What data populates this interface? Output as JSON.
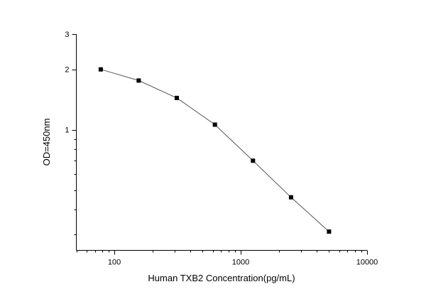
{
  "chart_data": {
    "type": "scatter",
    "x_scale": "log",
    "y_scale": "log",
    "xlabel": "Human TXB2 Concentration(pg/mL)",
    "ylabel": "OD=450nm",
    "xlim": [
      50,
      10000
    ],
    "ylim": [
      0.25,
      3
    ],
    "x_ticks": [
      {
        "value": 100,
        "label": "100"
      },
      {
        "value": 1000,
        "label": "1000"
      },
      {
        "value": 10000,
        "label": "10000"
      }
    ],
    "y_ticks": [
      {
        "value": 1,
        "label": "1"
      },
      {
        "value": 2,
        "label": "2"
      },
      {
        "value": 3,
        "label": "3"
      }
    ],
    "grid": false,
    "series": [
      {
        "x": [
          78,
          156,
          312,
          625,
          1250,
          2500,
          5000
        ],
        "y": [
          2.0,
          1.76,
          1.44,
          1.06,
          0.7,
          0.46,
          0.31
        ]
      }
    ]
  }
}
